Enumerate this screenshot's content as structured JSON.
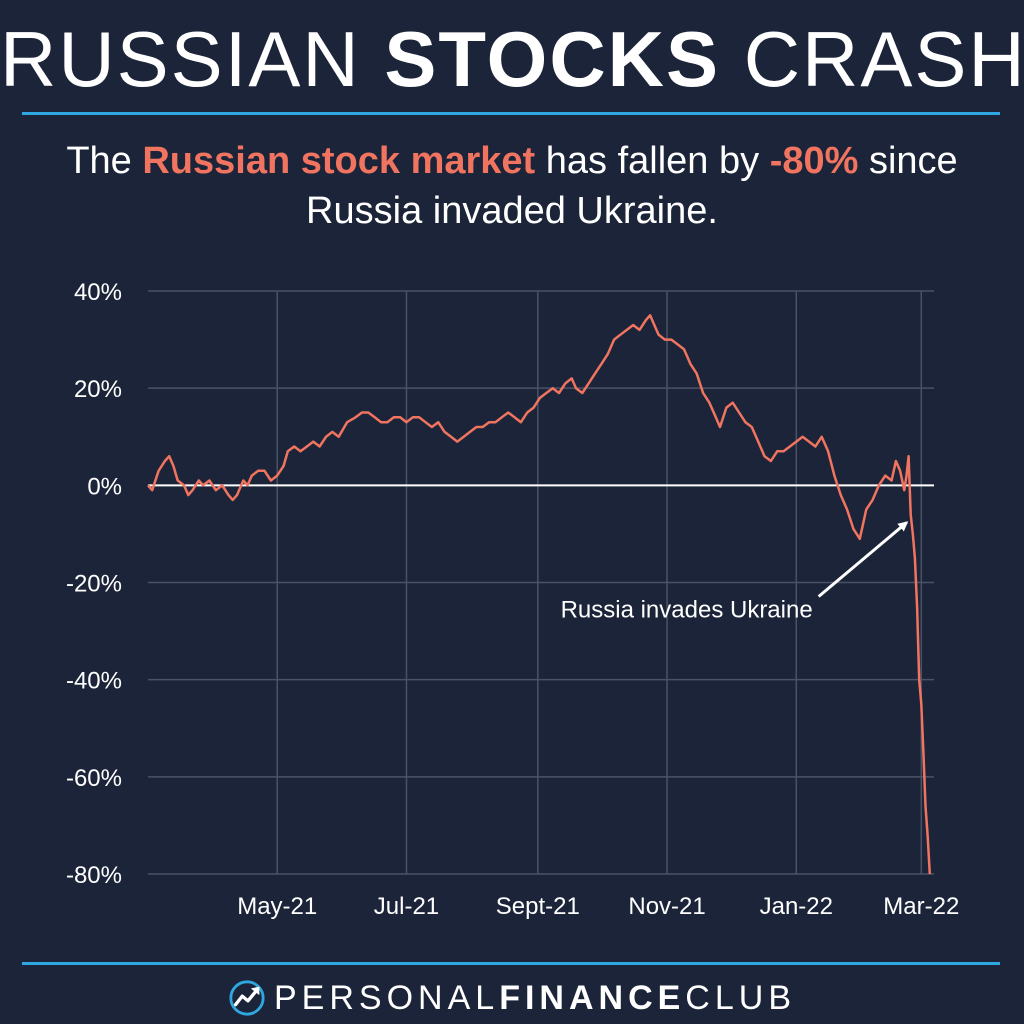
{
  "header": {
    "title_part1": "RUSSIAN ",
    "title_part2": "STOCKS",
    "title_part3": " CRASH",
    "subtitle_pre": "The ",
    "subtitle_hl1": "Russian stock market",
    "subtitle_mid": " has fallen by ",
    "subtitle_hl2": "-80%",
    "subtitle_post": " since Russia invaded Ukraine."
  },
  "colors": {
    "background": "#1b2438",
    "accent_rule": "#2fa7e0",
    "series": "#f07460",
    "grid": "#4a5366",
    "zero_line": "#ffffff"
  },
  "chart_data": {
    "type": "line",
    "title": "",
    "xlabel": "",
    "ylabel": "",
    "ylim": [
      -80,
      40
    ],
    "y_ticks": [
      "40%",
      "20%",
      "0%",
      "-20%",
      "-40%",
      "-60%",
      "-80%"
    ],
    "y_tick_values": [
      40,
      20,
      0,
      -20,
      -40,
      -60,
      -80
    ],
    "x_ticks": [
      "May-21",
      "Jul-21",
      "Sept-21",
      "Nov-21",
      "Jan-22",
      "Mar-22"
    ],
    "x_tick_dates": [
      "2021-05-01",
      "2021-07-01",
      "2021-09-01",
      "2021-11-01",
      "2022-01-01",
      "2022-03-01"
    ],
    "xlim": [
      "2021-03-01",
      "2022-03-07"
    ],
    "grid": true,
    "annotation": {
      "text": "Russia invades Ukraine",
      "date": "2022-02-24",
      "value": -6
    },
    "series": [
      {
        "name": "",
        "points": [
          [
            "2021-03-01",
            0
          ],
          [
            "2021-03-03",
            -1
          ],
          [
            "2021-03-06",
            3
          ],
          [
            "2021-03-09",
            5
          ],
          [
            "2021-03-11",
            6
          ],
          [
            "2021-03-13",
            4
          ],
          [
            "2021-03-15",
            1
          ],
          [
            "2021-03-18",
            0
          ],
          [
            "2021-03-20",
            -2
          ],
          [
            "2021-03-22",
            -1
          ],
          [
            "2021-03-25",
            1
          ],
          [
            "2021-03-27",
            0
          ],
          [
            "2021-03-30",
            1
          ],
          [
            "2021-04-02",
            -1
          ],
          [
            "2021-04-05",
            0
          ],
          [
            "2021-04-08",
            -2
          ],
          [
            "2021-04-10",
            -3
          ],
          [
            "2021-04-12",
            -2
          ],
          [
            "2021-04-15",
            1
          ],
          [
            "2021-04-17",
            0
          ],
          [
            "2021-04-19",
            2
          ],
          [
            "2021-04-22",
            3
          ],
          [
            "2021-04-25",
            3
          ],
          [
            "2021-04-28",
            1
          ],
          [
            "2021-05-01",
            2
          ],
          [
            "2021-05-04",
            4
          ],
          [
            "2021-05-06",
            7
          ],
          [
            "2021-05-09",
            8
          ],
          [
            "2021-05-12",
            7
          ],
          [
            "2021-05-15",
            8
          ],
          [
            "2021-05-18",
            9
          ],
          [
            "2021-05-21",
            8
          ],
          [
            "2021-05-24",
            10
          ],
          [
            "2021-05-27",
            11
          ],
          [
            "2021-05-30",
            10
          ],
          [
            "2021-06-03",
            13
          ],
          [
            "2021-06-07",
            14
          ],
          [
            "2021-06-10",
            15
          ],
          [
            "2021-06-13",
            15
          ],
          [
            "2021-06-16",
            14
          ],
          [
            "2021-06-19",
            13
          ],
          [
            "2021-06-22",
            13
          ],
          [
            "2021-06-25",
            14
          ],
          [
            "2021-06-28",
            14
          ],
          [
            "2021-07-01",
            13
          ],
          [
            "2021-07-04",
            14
          ],
          [
            "2021-07-07",
            14
          ],
          [
            "2021-07-10",
            13
          ],
          [
            "2021-07-13",
            12
          ],
          [
            "2021-07-16",
            13
          ],
          [
            "2021-07-19",
            11
          ],
          [
            "2021-07-22",
            10
          ],
          [
            "2021-07-25",
            9
          ],
          [
            "2021-07-28",
            10
          ],
          [
            "2021-07-31",
            11
          ],
          [
            "2021-08-03",
            12
          ],
          [
            "2021-08-06",
            12
          ],
          [
            "2021-08-09",
            13
          ],
          [
            "2021-08-12",
            13
          ],
          [
            "2021-08-15",
            14
          ],
          [
            "2021-08-18",
            15
          ],
          [
            "2021-08-21",
            14
          ],
          [
            "2021-08-24",
            13
          ],
          [
            "2021-08-27",
            15
          ],
          [
            "2021-08-30",
            16
          ],
          [
            "2021-09-02",
            18
          ],
          [
            "2021-09-05",
            19
          ],
          [
            "2021-09-08",
            20
          ],
          [
            "2021-09-11",
            19
          ],
          [
            "2021-09-14",
            21
          ],
          [
            "2021-09-17",
            22
          ],
          [
            "2021-09-19",
            20
          ],
          [
            "2021-09-22",
            19
          ],
          [
            "2021-09-25",
            21
          ],
          [
            "2021-09-28",
            23
          ],
          [
            "2021-10-01",
            25
          ],
          [
            "2021-10-04",
            27
          ],
          [
            "2021-10-07",
            30
          ],
          [
            "2021-10-10",
            31
          ],
          [
            "2021-10-13",
            32
          ],
          [
            "2021-10-16",
            33
          ],
          [
            "2021-10-19",
            32
          ],
          [
            "2021-10-22",
            34
          ],
          [
            "2021-10-24",
            35
          ],
          [
            "2021-10-26",
            33
          ],
          [
            "2021-10-28",
            31
          ],
          [
            "2021-10-31",
            30
          ],
          [
            "2021-11-03",
            30
          ],
          [
            "2021-11-06",
            29
          ],
          [
            "2021-11-09",
            28
          ],
          [
            "2021-11-12",
            25
          ],
          [
            "2021-11-15",
            23
          ],
          [
            "2021-11-18",
            19
          ],
          [
            "2021-11-21",
            17
          ],
          [
            "2021-11-24",
            14
          ],
          [
            "2021-11-26",
            12
          ],
          [
            "2021-11-29",
            16
          ],
          [
            "2021-12-02",
            17
          ],
          [
            "2021-12-05",
            15
          ],
          [
            "2021-12-08",
            13
          ],
          [
            "2021-12-11",
            12
          ],
          [
            "2021-12-14",
            9
          ],
          [
            "2021-12-17",
            6
          ],
          [
            "2021-12-20",
            5
          ],
          [
            "2021-12-23",
            7
          ],
          [
            "2021-12-26",
            7
          ],
          [
            "2021-12-29",
            8
          ],
          [
            "2022-01-01",
            9
          ],
          [
            "2022-01-04",
            10
          ],
          [
            "2022-01-07",
            9
          ],
          [
            "2022-01-10",
            8
          ],
          [
            "2022-01-13",
            10
          ],
          [
            "2022-01-16",
            7
          ],
          [
            "2022-01-19",
            2
          ],
          [
            "2022-01-22",
            -2
          ],
          [
            "2022-01-25",
            -5
          ],
          [
            "2022-01-28",
            -9
          ],
          [
            "2022-01-31",
            -11
          ],
          [
            "2022-02-03",
            -5
          ],
          [
            "2022-02-06",
            -3
          ],
          [
            "2022-02-09",
            0
          ],
          [
            "2022-02-12",
            2
          ],
          [
            "2022-02-15",
            1
          ],
          [
            "2022-02-17",
            5
          ],
          [
            "2022-02-19",
            3
          ],
          [
            "2022-02-21",
            -1
          ],
          [
            "2022-02-22",
            2
          ],
          [
            "2022-02-23",
            6
          ],
          [
            "2022-02-24",
            -6
          ],
          [
            "2022-02-25",
            -10
          ],
          [
            "2022-02-26",
            -15
          ],
          [
            "2022-02-27",
            -25
          ],
          [
            "2022-02-28",
            -40
          ],
          [
            "2022-03-01",
            -45
          ],
          [
            "2022-03-02",
            -55
          ],
          [
            "2022-03-03",
            -66
          ],
          [
            "2022-03-04",
            -72
          ],
          [
            "2022-03-05",
            -80
          ]
        ]
      }
    ]
  },
  "footer": {
    "brand_part1": "PERSONAL",
    "brand_part2": "FINANCE",
    "brand_part3": "CLUB",
    "logo_icon": "rising-arrow-icon"
  }
}
